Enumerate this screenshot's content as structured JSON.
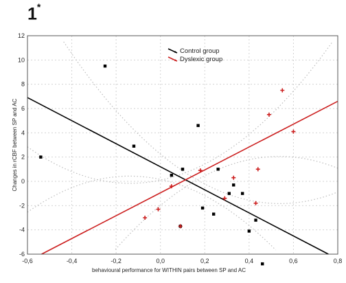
{
  "figure_label": "1",
  "figure_label_mark": "*",
  "chart_data": {
    "type": "scatter",
    "title": "",
    "xlabel": "behavioural performance for WITHIN pairs between SP and AC",
    "ylabel": "Changes in rCBF between SP and AC",
    "xlim": [
      -0.6,
      0.8
    ],
    "ylim": [
      -6,
      12
    ],
    "x_ticks": [
      "-0,6",
      "-0,4",
      "-0,2",
      "0,0",
      "0,2",
      "0,4",
      "0,6",
      "0,8"
    ],
    "y_ticks": [
      "-6",
      "-4",
      "-2",
      "0",
      "2",
      "4",
      "6",
      "8",
      "10",
      "12"
    ],
    "grid": true,
    "legend_position": "top-center",
    "series": [
      {
        "name": "Control group",
        "color": "#000000",
        "marker": "square",
        "points": [
          [
            -0.54,
            2.0
          ],
          [
            -0.25,
            9.5
          ],
          [
            -0.12,
            2.9
          ],
          [
            0.05,
            0.5
          ],
          [
            0.09,
            -3.7
          ],
          [
            0.1,
            1.0
          ],
          [
            0.17,
            4.6
          ],
          [
            0.19,
            -2.2
          ],
          [
            0.24,
            -2.7
          ],
          [
            0.26,
            1.0
          ],
          [
            0.31,
            -1.0
          ],
          [
            0.33,
            -0.3
          ],
          [
            0.37,
            -1.0
          ],
          [
            0.4,
            -4.1
          ],
          [
            0.43,
            -3.2
          ],
          [
            0.46,
            -6.8
          ]
        ],
        "fit": {
          "x": [
            -0.6,
            0.8
          ],
          "y": [
            6.9,
            -6.4
          ]
        }
      },
      {
        "name": "Dyslexic group",
        "color": "#cc1f1f",
        "marker": "plus",
        "points": [
          [
            -0.07,
            -3.0
          ],
          [
            -0.01,
            -2.3
          ],
          [
            0.05,
            -0.4
          ],
          [
            0.09,
            -3.7
          ],
          [
            0.18,
            0.9
          ],
          [
            0.29,
            -1.4
          ],
          [
            0.33,
            0.3
          ],
          [
            0.43,
            -1.8
          ],
          [
            0.44,
            1.0
          ],
          [
            0.49,
            5.5
          ],
          [
            0.55,
            7.5
          ],
          [
            0.6,
            4.1
          ]
        ],
        "fit": {
          "x": [
            -0.6,
            0.8
          ],
          "y": [
            -6.6,
            6.6
          ]
        }
      }
    ]
  }
}
